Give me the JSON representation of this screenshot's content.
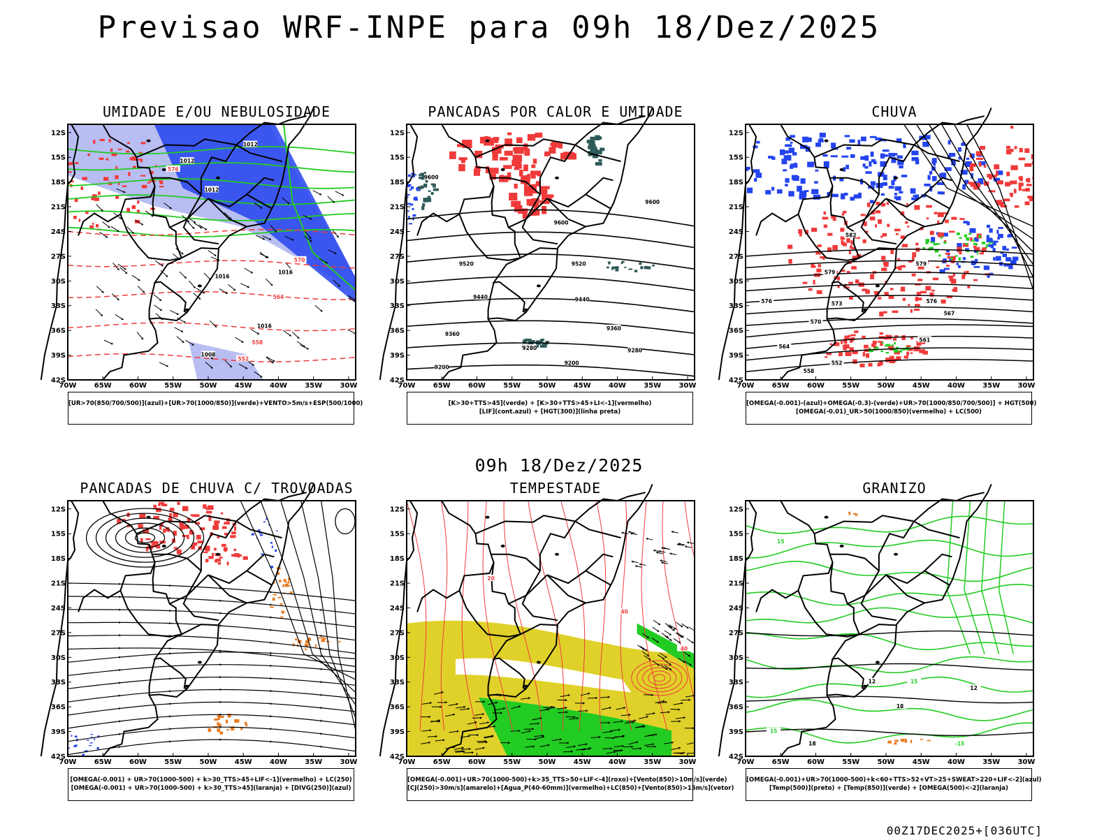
{
  "main_title": "Previsao WRF-INPE  para 09h 18/Dez/2025",
  "mid_title": "09h 18/Dez/2025",
  "footer": "00Z17DEC2025+[036UTC]",
  "axes": {
    "lat_labels": [
      "12S",
      "15S",
      "18S",
      "21S",
      "24S",
      "27S",
      "30S",
      "33S",
      "36S",
      "39S",
      "42S"
    ],
    "lon_labels": [
      "70W",
      "65W",
      "60W",
      "55W",
      "50W",
      "45W",
      "40W",
      "35W",
      "30W"
    ]
  },
  "colors": {
    "red": "#f03a3a",
    "green": "#22cc22",
    "blue": "#2444ee",
    "lightblue": "#b8bdf2",
    "teal": "#2e5a58",
    "yellow": "#e0d12a",
    "orange": "#e87a20"
  },
  "panels": [
    {
      "title": "UMIDADE E/OU NEBULOSIDADE",
      "legend": [
        "[UR>70(850/700/500)](azul)+[UR>70(1000/850)](verde)+VENTO>5m/s+ESP(500/1000)"
      ],
      "contour_labels": [
        "1012",
        "1012",
        "1012",
        "1016",
        "1016",
        "1016",
        "1008",
        "576",
        "570",
        "564",
        "558",
        "552"
      ]
    },
    {
      "title": "PANCADAS POR CALOR E UMIDADE",
      "legend": [
        "[K>30+TTS>45](verde) + [K>30+TTS>45+LI<-1](vermelho)",
        "[LIF](cont.azul) + [HGT(300)](linha preta)"
      ],
      "contour_labels": [
        "9600",
        "9600",
        "9600",
        "9520",
        "9520",
        "9440",
        "9440",
        "9360",
        "9360",
        "9280",
        "9280",
        "9200",
        "9200"
      ]
    },
    {
      "title": "CHUVA",
      "legend": [
        "[OMEGA(-0.001)-(azul)+OMEGA(-0.3)-(verde)+UR>70(1000/850/700/500)] + HGT(500)",
        "[OMEGA(-0.01)_UR>50(1000/850)(vermelho) + LC(500)"
      ],
      "contour_labels": [
        "582",
        "579",
        "579",
        "576",
        "576",
        "573",
        "570",
        "567",
        "564",
        "561",
        "558",
        "552"
      ]
    },
    {
      "title": "PANCADAS DE CHUVA C/ TROVOADAS",
      "legend": [
        "[OMEGA(-0.001) + UR>70(1000-500) + k>30_TTS>45+LIF<-1](vermelho) + LC(250)",
        "[OMEGA(-0.001) + UR>70(1000-500) + k>30_TTS>45](laranja) + [DIVG(250)](azul)"
      ],
      "contour_labels": []
    },
    {
      "title": "TEMPESTADE",
      "legend": [
        "[OMEGA(-0.001)+UR>70(1000-500)+k>35_TTS>50+LIF<-4](roxo)+[Vento(850)>10m/s](verde)",
        "[CJ(250)>30m/s](amarelo)+[Agua_P(40-60mm)](vermelho)+LC(850)+[Vento(850)>15m/s](vetor)"
      ],
      "contour_labels": [
        "40",
        "40",
        "20"
      ]
    },
    {
      "title": "GRANIZO",
      "legend": [
        "[OMEGA(-0.001)+UR>70(1000-500)+k<60+TTS>52+VT>25+SWEAT>220+LIF<-2](azul)",
        "[Temp(500)](preto) + [Temp(850)](verde) + [OMEGA(500)<-2](laranja)"
      ],
      "contour_labels": [
        "12",
        "12",
        "18",
        "18",
        "15",
        "15",
        "-15",
        "15"
      ]
    }
  ]
}
